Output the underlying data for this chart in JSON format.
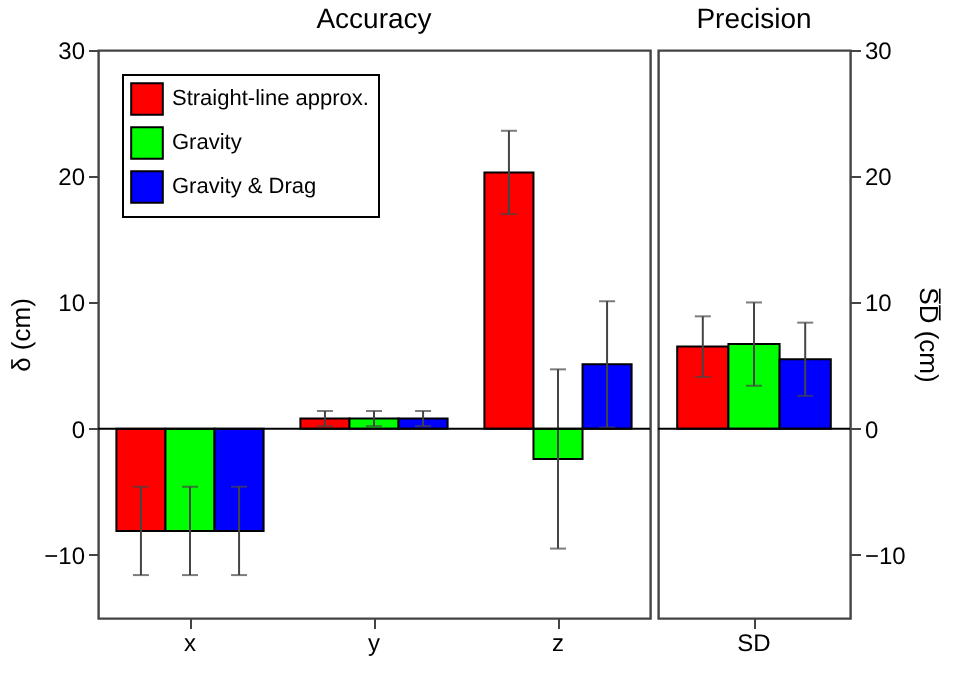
{
  "chart_data": [
    {
      "type": "bar",
      "title": "Accuracy",
      "ylabel": "δ (cm)",
      "categories": [
        "x",
        "y",
        "z"
      ],
      "ylim": [
        -15,
        30
      ],
      "yticks": [
        -10,
        0,
        10,
        20,
        30
      ],
      "legend": "top left",
      "grid": false,
      "ref_lines": [
        {
          "axis": "y",
          "value": 0
        }
      ],
      "series": [
        {
          "name": "Straight-line approx.",
          "color": "#ff0000",
          "values": [
            -8.1,
            0.8,
            20.3
          ],
          "errors": [
            3.5,
            0.6,
            3.3
          ]
        },
        {
          "name": "Gravity",
          "color": "#00ff00",
          "values": [
            -8.1,
            0.8,
            -2.4
          ],
          "errors": [
            3.5,
            0.6,
            7.1
          ]
        },
        {
          "name": "Gravity & Drag",
          "color": "#0000ff",
          "values": [
            -8.1,
            0.8,
            5.1
          ],
          "errors": [
            3.5,
            0.6,
            5.0
          ]
        }
      ]
    },
    {
      "type": "bar",
      "title": "Precision",
      "y2label": "S̅D̅ (cm)",
      "categories": [
        "SD"
      ],
      "y2lim": [
        -15,
        30
      ],
      "y2ticks": [
        -10,
        0,
        10,
        20,
        30
      ],
      "legend": false,
      "grid": false,
      "ref_lines": [
        {
          "axis": "y2",
          "value": 0
        }
      ],
      "series": [
        {
          "color": "#ff0000",
          "values": [
            6.5
          ],
          "errors": [
            2.4
          ],
          "axis": "y2"
        },
        {
          "color": "#00ff00",
          "values": [
            6.7
          ],
          "errors": [
            3.3
          ],
          "axis": "y2"
        },
        {
          "color": "#0000ff",
          "values": [
            5.5
          ],
          "errors": [
            2.9
          ],
          "axis": "y2"
        }
      ]
    }
  ]
}
